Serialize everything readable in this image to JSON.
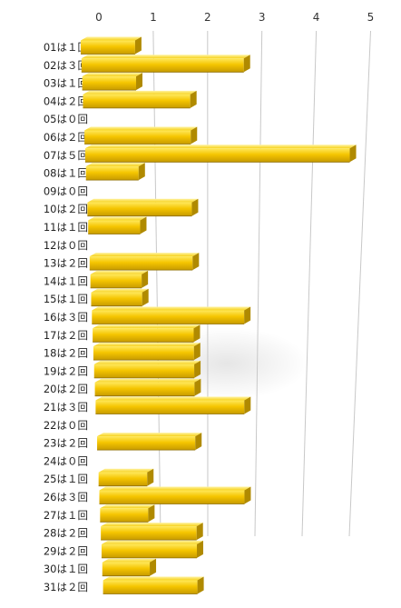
{
  "chart_data": {
    "type": "bar",
    "orientation": "horizontal",
    "style": "3d",
    "bar_color": "#F2C200",
    "bar_top_color": "#FFE34D",
    "bar_side_color": "#B08A00",
    "grid": true,
    "xlim": [
      0,
      5
    ],
    "x_ticks": [
      "0",
      "1",
      "2",
      "3",
      "4",
      "5"
    ],
    "categories": [
      "01は１回",
      "02は３回",
      "03は１回",
      "04は２回",
      "05は０回",
      "06は２回",
      "07は５回",
      "08は１回",
      "09は０回",
      "10は２回",
      "11は１回",
      "12は０回",
      "13は２回",
      "14は１回",
      "15は１回",
      "16は３回",
      "17は２回",
      "18は２回",
      "19は２回",
      "20は２回",
      "21は３回",
      "22は０回",
      "23は２回",
      "24は０回",
      "25は１回",
      "26は３回",
      "27は１回",
      "28は２回",
      "29は２回",
      "30は１回",
      "31は２回"
    ],
    "values": [
      1,
      3,
      1,
      2,
      0,
      2,
      5,
      1,
      0,
      2,
      1,
      0,
      2,
      1,
      1,
      3,
      2,
      2,
      2,
      2,
      3,
      0,
      2,
      0,
      1,
      3,
      1,
      2,
      2,
      1,
      2
    ]
  }
}
